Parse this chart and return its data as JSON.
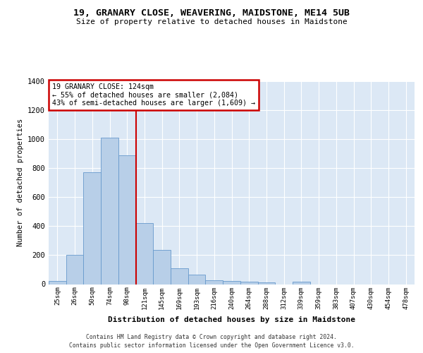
{
  "title": "19, GRANARY CLOSE, WEAVERING, MAIDSTONE, ME14 5UB",
  "subtitle": "Size of property relative to detached houses in Maidstone",
  "xlabel": "Distribution of detached houses by size in Maidstone",
  "ylabel": "Number of detached properties",
  "categories": [
    "25sqm",
    "26sqm",
    "50sqm",
    "74sqm",
    "98sqm",
    "121sqm",
    "145sqm",
    "169sqm",
    "193sqm",
    "216sqm",
    "240sqm",
    "264sqm",
    "288sqm",
    "312sqm",
    "339sqm",
    "359sqm",
    "383sqm",
    "407sqm",
    "430sqm",
    "454sqm",
    "478sqm"
  ],
  "bar_values": [
    20,
    200,
    770,
    1010,
    890,
    420,
    235,
    110,
    68,
    25,
    22,
    15,
    10,
    0,
    15,
    0,
    0,
    0,
    0,
    0,
    0
  ],
  "bar_color": "#b8cfe8",
  "bar_edge_color": "#6699cc",
  "background_color": "#dce8f5",
  "grid_color": "#ffffff",
  "annotation_title": "19 GRANARY CLOSE: 124sqm",
  "annotation_line1": "← 55% of detached houses are smaller (2,084)",
  "annotation_line2": "43% of semi-detached houses are larger (1,609) →",
  "annotation_box_color": "#ffffff",
  "annotation_border_color": "#cc0000",
  "footer_line1": "Contains HM Land Registry data © Crown copyright and database right 2024.",
  "footer_line2": "Contains public sector information licensed under the Open Government Licence v3.0.",
  "ylim": [
    0,
    1400
  ],
  "yticks": [
    0,
    200,
    400,
    600,
    800,
    1000,
    1200,
    1400
  ],
  "red_line_index": 5
}
